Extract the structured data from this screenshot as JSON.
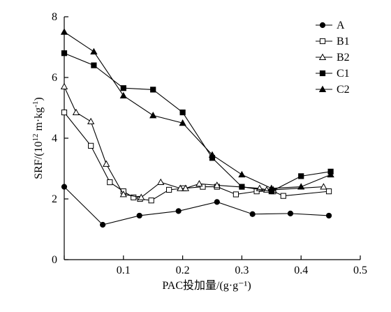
{
  "chart_data": {
    "type": "line",
    "title": "",
    "xlabel": "PAC投加量/(g·g⁻¹)",
    "ylabel_parts": {
      "main": "SRF/(10",
      "sup1": "12",
      "mid": " m·kg",
      "sup2": "-1",
      "end": ")"
    },
    "xlim": [
      0,
      0.5
    ],
    "ylim": [
      0,
      8
    ],
    "xticks": [
      0,
      0.1,
      0.2,
      0.3,
      0.4,
      0.5
    ],
    "xtick_labels": [
      "0.1",
      "0.2",
      "0.3",
      "0.4",
      "0.5"
    ],
    "yticks": [
      0,
      2,
      4,
      6,
      8
    ],
    "ytick_labels": [
      "0",
      "2",
      "4",
      "6",
      "8"
    ],
    "legend_position": "top-right",
    "series": [
      {
        "name": "A",
        "marker": "circle-filled",
        "x": [
          0.0,
          0.065,
          0.127,
          0.193,
          0.258,
          0.318,
          0.382,
          0.447
        ],
        "y": [
          2.4,
          1.15,
          1.45,
          1.6,
          1.9,
          1.5,
          1.52,
          1.45
        ]
      },
      {
        "name": "B1",
        "marker": "square-open",
        "x": [
          0.0,
          0.045,
          0.077,
          0.1,
          0.117,
          0.128,
          0.147,
          0.177,
          0.202,
          0.234,
          0.258,
          0.29,
          0.325,
          0.353,
          0.37,
          0.447
        ],
        "y": [
          4.85,
          3.75,
          2.55,
          2.25,
          2.05,
          2.0,
          1.95,
          2.3,
          2.35,
          2.4,
          2.4,
          2.15,
          2.25,
          2.25,
          2.1,
          2.25
        ]
      },
      {
        "name": "B2",
        "marker": "triangle-open",
        "x": [
          0.0,
          0.02,
          0.045,
          0.071,
          0.1,
          0.13,
          0.163,
          0.196,
          0.205,
          0.228,
          0.258,
          0.33,
          0.342,
          0.353,
          0.438
        ],
        "y": [
          5.7,
          4.85,
          4.55,
          3.15,
          2.15,
          2.05,
          2.55,
          2.35,
          2.35,
          2.5,
          2.45,
          2.35,
          2.3,
          2.3,
          2.4
        ]
      },
      {
        "name": "C1",
        "marker": "square-filled",
        "x": [
          0.0,
          0.05,
          0.1,
          0.15,
          0.2,
          0.25,
          0.3,
          0.35,
          0.4,
          0.45
        ],
        "y": [
          6.8,
          6.4,
          5.65,
          5.6,
          4.85,
          3.35,
          2.4,
          2.25,
          2.75,
          2.9
        ]
      },
      {
        "name": "C2",
        "marker": "triangle-filled",
        "x": [
          0.0,
          0.05,
          0.1,
          0.15,
          0.2,
          0.25,
          0.3,
          0.35,
          0.4,
          0.45
        ],
        "y": [
          7.5,
          6.85,
          5.4,
          4.75,
          4.5,
          3.45,
          2.8,
          2.35,
          2.4,
          2.8
        ]
      }
    ]
  }
}
